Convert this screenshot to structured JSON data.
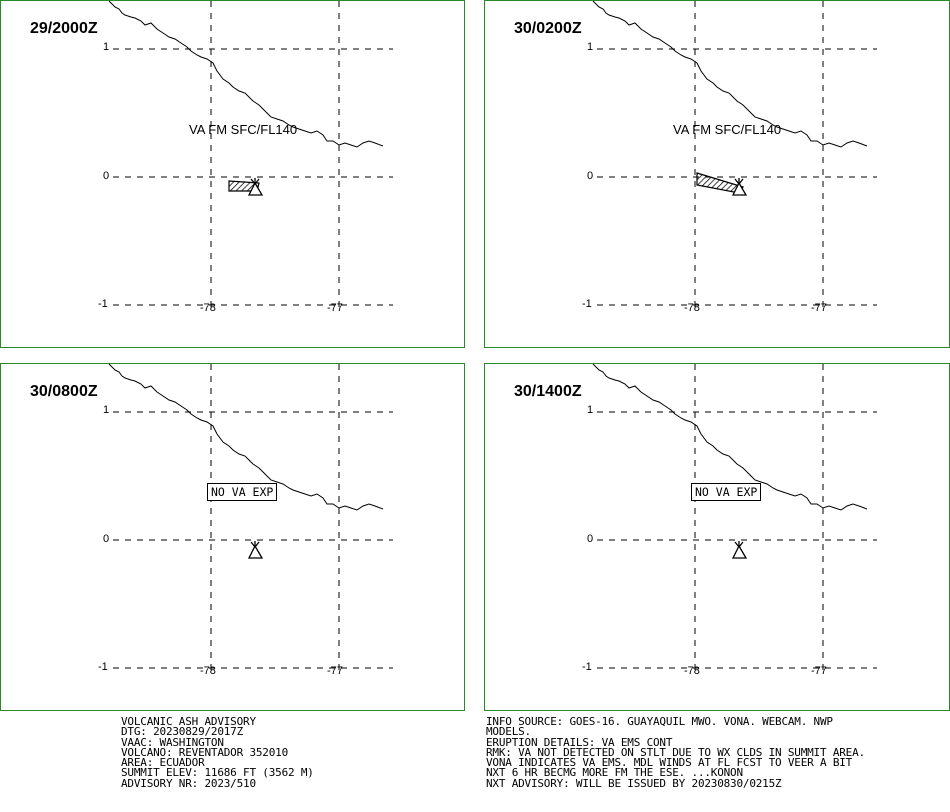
{
  "panels": [
    {
      "time": "29/2000Z",
      "label": "VA FM SFC/FL140",
      "has_ash": true
    },
    {
      "time": "30/0200Z",
      "label": "VA FM SFC/FL140",
      "has_ash": true
    },
    {
      "time": "30/0800Z",
      "label": "NO VA EXP",
      "has_ash": false
    },
    {
      "time": "30/1400Z",
      "label": "NO VA EXP",
      "has_ash": false
    }
  ],
  "axes": {
    "lat_labels": [
      "1",
      "0",
      "-1"
    ],
    "lon_labels": [
      "-78",
      "-77"
    ]
  },
  "advisory_left": [
    "VOLCANIC ASH ADVISORY",
    "DTG: 20230829/2017Z",
    "VAAC: WASHINGTON",
    "VOLCANO: REVENTADOR 352010",
    "AREA: ECUADOR",
    "SUMMIT ELEV: 11686 FT (3562 M)",
    "ADVISORY NR: 2023/510"
  ],
  "advisory_right": [
    "INFO SOURCE: GOES-16. GUAYAQUIL MWO. VONA. WEBCAM. NWP",
    "MODELS.",
    "ERUPTION DETAILS: VA EMS CONT",
    "RMK: VA NOT DETECTED ON STLT DUE TO WX CLDS IN SUMMIT AREA.",
    "VONA INDICATES VA EMS. MDL WINDS AT FL FCST TO VEER A BIT",
    "NXT 6 HR BECMG MORE FM THE ESE. ...KONON",
    "NXT ADVISORY: WILL BE ISSUED BY 20230830/0215Z"
  ],
  "colors": {
    "frame": "#2a8a2a",
    "lines": "#000000"
  }
}
